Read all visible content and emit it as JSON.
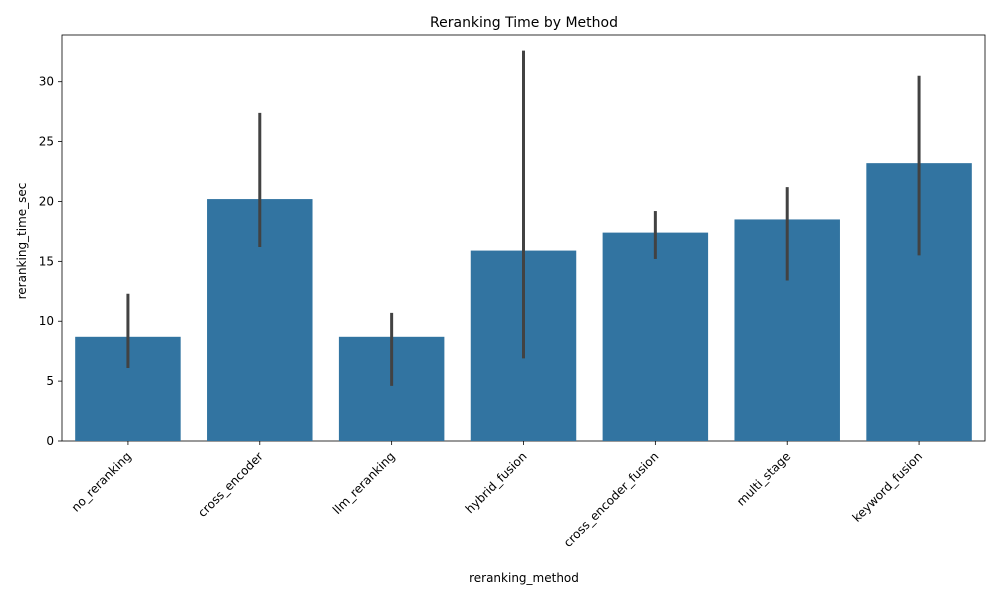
{
  "chart_data": {
    "type": "bar",
    "title": "Reranking Time by Method",
    "xlabel": "reranking_method",
    "ylabel": "reranking_time_sec",
    "categories": [
      "no_reranking",
      "cross_encoder",
      "llm_reranking",
      "hybrid_fusion",
      "cross_encoder_fusion",
      "multi_stage",
      "keyword_fusion"
    ],
    "values": [
      8.7,
      20.2,
      8.7,
      15.9,
      17.4,
      18.5,
      23.2
    ],
    "error_bars": [
      {
        "low": 6.1,
        "high": 12.3
      },
      {
        "low": 16.2,
        "high": 27.4
      },
      {
        "low": 4.6,
        "high": 10.7
      },
      {
        "low": 6.9,
        "high": 32.6
      },
      {
        "low": 15.2,
        "high": 19.2
      },
      {
        "low": 13.4,
        "high": 21.2
      },
      {
        "low": 15.5,
        "high": 30.5
      }
    ],
    "ylim": [
      0,
      33.9
    ],
    "yticks": [
      0,
      5,
      10,
      15,
      20,
      25,
      30
    ],
    "bar_color": "#3274a1",
    "error_color": "#424242",
    "grid": false,
    "legend": "none"
  }
}
